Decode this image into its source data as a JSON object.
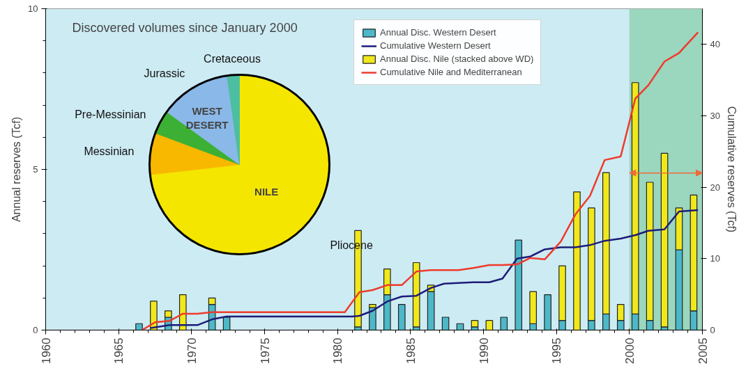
{
  "chart_data": [
    {
      "type": "bar",
      "stacked": true,
      "ylabel": "Annual reserves (Tcf)",
      "y2label": "Cumulative reserves (Tcf)",
      "x": [
        1966.4,
        1967.4,
        1968.4,
        1969.4,
        1971.4,
        1972.4,
        1981.4,
        1982.4,
        1983.4,
        1984.4,
        1985.4,
        1986.4,
        1987.4,
        1988.4,
        1989.4,
        1990.4,
        1991.4,
        1992.4,
        1993.4,
        1994.4,
        1995.4,
        1996.4,
        1997.4,
        1998.4,
        1999.4,
        2000.4,
        2001.4,
        2002.4,
        2003.4,
        2004.4
      ],
      "series": [
        {
          "name": "Annual Disc. Western Desert",
          "type": "bar",
          "color": "#4db8c8",
          "values": [
            0.2,
            null,
            0.4,
            null,
            0.8,
            0.4,
            0.1,
            0.7,
            1.1,
            0.8,
            0.1,
            1.2,
            0.4,
            0.2,
            0.1,
            null,
            0.4,
            2.8,
            0.2,
            1.1,
            0.3,
            null,
            0.3,
            0.5,
            0.3,
            0.5,
            0.3,
            0.1,
            2.5,
            0.6
          ]
        },
        {
          "name": "Cumulative Western Desert",
          "type": "line",
          "axis": "y2",
          "color": "#1c1c78",
          "x": [
            1967.2,
            1968.5,
            1970.4,
            1971.4,
            1972.4,
            1981.0,
            1981.5,
            1982.4,
            1983.4,
            1984.4,
            1985.4,
            1986.4,
            1987.3,
            1988.3,
            1989.3,
            1990.4,
            1991.3,
            1992.3,
            1993.2,
            1994.2,
            1995.3,
            1996.3,
            1997.3,
            1998.3,
            1999.4,
            2000.4,
            2001.3,
            2002.4,
            2003.4,
            2004.7
          ],
          "values": [
            0.3,
            0.7,
            0.7,
            1.5,
            1.9,
            1.9,
            2.0,
            2.7,
            4.0,
            4.7,
            4.8,
            5.9,
            6.5,
            6.6,
            6.7,
            6.7,
            7.2,
            10.0,
            10.3,
            11.3,
            11.6,
            11.6,
            11.9,
            12.5,
            12.8,
            13.3,
            13.9,
            14.1,
            16.6,
            16.8
          ]
        },
        {
          "name": "Annual Disc. Nile (stacked above WD)",
          "type": "bar",
          "color": "#f0e81c",
          "values": [
            null,
            0.9,
            0.2,
            1.1,
            0.2,
            null,
            3.0,
            0.1,
            0.8,
            null,
            2.0,
            0.2,
            null,
            null,
            0.2,
            0.3,
            null,
            null,
            1.0,
            null,
            1.7,
            4.3,
            3.5,
            4.4,
            0.5,
            7.2,
            4.3,
            5.4,
            1.3,
            3.6
          ]
        },
        {
          "name": "Cumulative Nile and Mediterranean",
          "type": "line",
          "axis": "y2",
          "color": "#ee3b2b",
          "x": [
            1966.6,
            1967.5,
            1968.5,
            1969.4,
            1970.4,
            1971.4,
            1980.5,
            1981.5,
            1982.4,
            1983.4,
            1984.4,
            1985.4,
            1986.4,
            1987.3,
            1988.3,
            1989.3,
            1990.4,
            1991.3,
            1992.3,
            1993.2,
            1994.2,
            1995.3,
            1996.3,
            1997.3,
            1998.3,
            1999.4,
            2000.4,
            2001.3,
            2002.4,
            2003.4,
            2004.7
          ],
          "values": [
            0,
            1.1,
            1.3,
            2.3,
            2.3,
            2.5,
            2.5,
            5.3,
            5.6,
            6.3,
            6.3,
            8.2,
            8.4,
            8.4,
            8.4,
            8.7,
            9.1,
            9.1,
            9.2,
            10.1,
            9.9,
            12.4,
            16.2,
            18.8,
            23.8,
            24.3,
            32.4,
            34.3,
            37.6,
            38.8,
            41.7
          ]
        }
      ],
      "xlim": [
        1960,
        2005
      ],
      "xticks": [
        1960,
        1965,
        1970,
        1975,
        1980,
        1985,
        1990,
        1995,
        2000,
        2005
      ],
      "ylim": [
        0,
        10
      ],
      "yticks": [
        0,
        5,
        10
      ],
      "y2lim": [
        0,
        45
      ],
      "y2ticks": [
        0,
        10,
        20,
        30,
        40
      ],
      "bands": [
        {
          "axis": "x",
          "from": 2000,
          "to": 2005,
          "color": "#8fd1b0"
        }
      ],
      "grid": false,
      "legend": "top right"
    },
    {
      "type": "pie",
      "title": "Discovered volumes since January 2000",
      "categories": [
        "Pliocene",
        "Messinian",
        "Pre-Messinian",
        "Jurassic",
        "Cretaceous"
      ],
      "values": [
        73.2,
        7.5,
        4.3,
        12.8,
        2.2
      ],
      "colors": [
        "#f5e600",
        "#f8b800",
        "#3cb034",
        "#8ab8e8",
        "#4cbfa0"
      ],
      "annotations": [
        "NILE",
        "WEST DESERT"
      ]
    }
  ]
}
